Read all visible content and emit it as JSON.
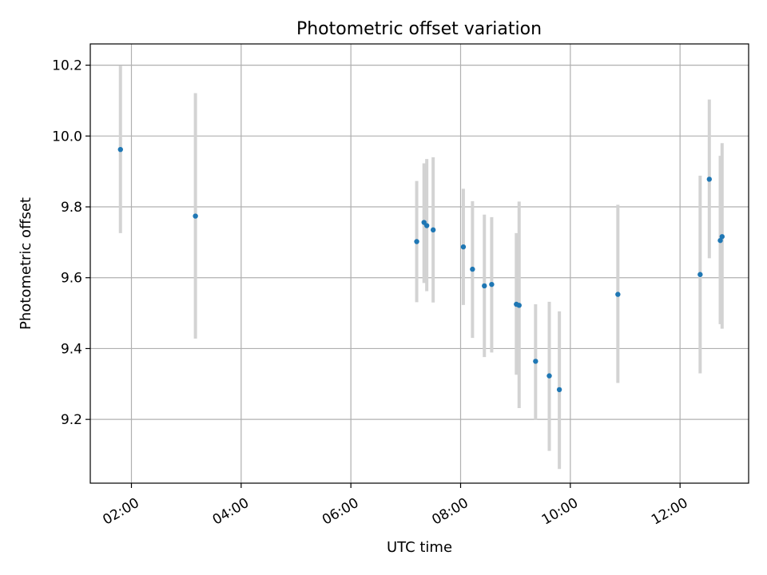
{
  "chart_data": {
    "type": "scatter",
    "title": "Photometric offset variation",
    "xlabel": "UTC time",
    "ylabel": "Photometric offset",
    "xlim": [
      "01:15",
      "13:15"
    ],
    "ylim": [
      9.02,
      10.26
    ],
    "x_ticks": [
      "02:00",
      "04:00",
      "06:00",
      "08:00",
      "10:00",
      "12:00"
    ],
    "y_ticks": [
      "9.2",
      "9.4",
      "9.6",
      "9.8",
      "10.0",
      "10.2"
    ],
    "grid": true,
    "colors": {
      "point": "#1f77b4",
      "errorbar": "#d3d3d3"
    },
    "series": [
      {
        "x": [
          "01:48",
          "03:10",
          "07:12",
          "07:20",
          "07:23",
          "07:30",
          "08:03",
          "08:13",
          "08:26",
          "08:34",
          "09:01",
          "09:04",
          "09:22",
          "09:37",
          "09:48",
          "10:52",
          "12:22",
          "12:32",
          "12:44",
          "12:46"
        ],
        "y": [
          9.962,
          9.774,
          9.702,
          9.756,
          9.747,
          9.735,
          9.687,
          9.624,
          9.577,
          9.581,
          9.525,
          9.522,
          9.364,
          9.323,
          9.284,
          9.553,
          9.609,
          9.878,
          9.705,
          9.716
        ],
        "yerr_low": [
          9.726,
          9.428,
          9.531,
          9.585,
          9.562,
          9.53,
          9.523,
          9.43,
          9.376,
          9.389,
          9.326,
          9.232,
          9.198,
          9.111,
          9.06,
          9.303,
          9.33,
          9.655,
          9.469,
          9.456
        ],
        "yerr_high": [
          10.198,
          10.121,
          9.873,
          9.923,
          9.935,
          9.94,
          9.851,
          9.816,
          9.778,
          9.771,
          9.726,
          9.815,
          9.525,
          9.532,
          9.505,
          9.806,
          9.888,
          10.103,
          9.944,
          9.98
        ]
      }
    ]
  }
}
